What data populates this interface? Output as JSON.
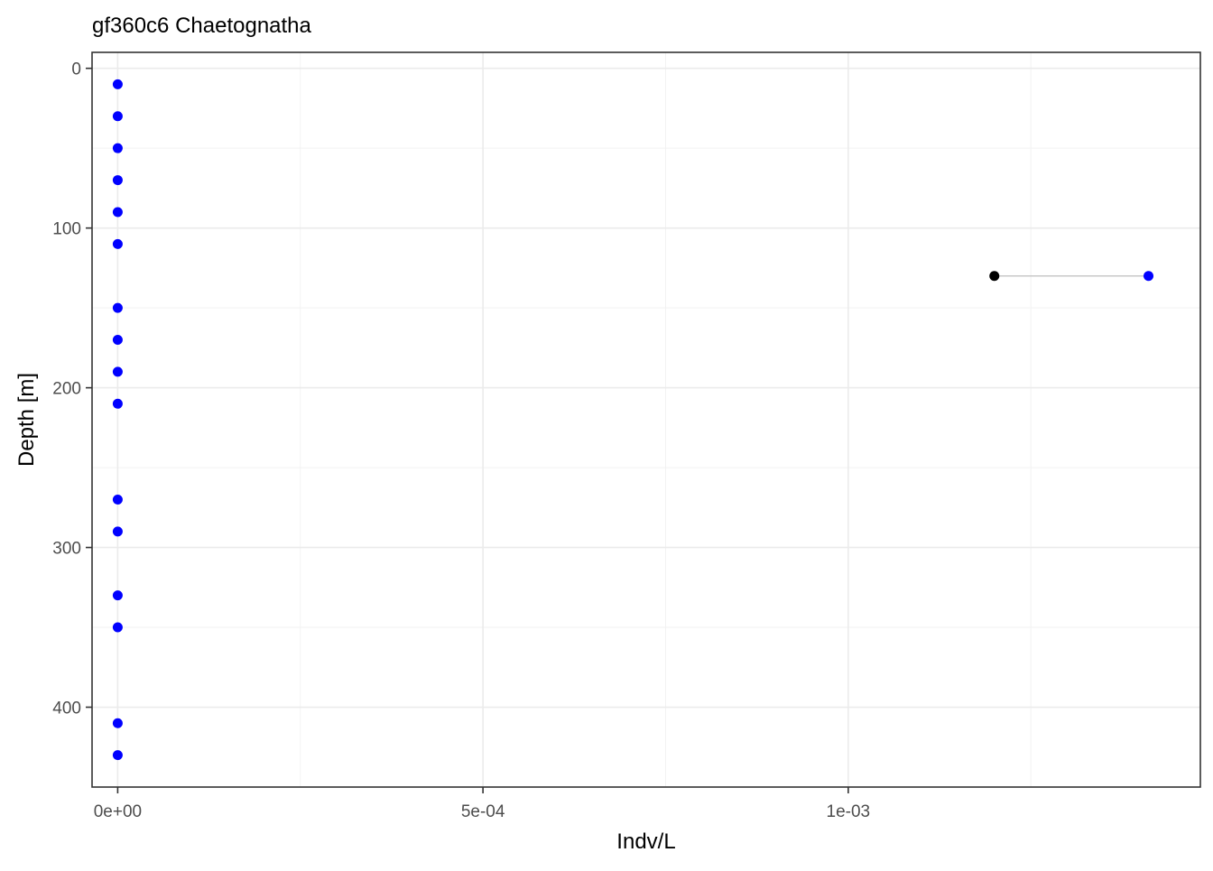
{
  "chart_data": {
    "type": "scatter",
    "title": "gf360c6 Chaetognatha",
    "xlabel": "Indv/L",
    "ylabel": "Depth [m]",
    "xlim": [
      -3.51e-05,
      0.001482
    ],
    "ylim": [
      450,
      -10
    ],
    "x_ticks": [
      0,
      0.0005,
      0.001
    ],
    "x_tick_labels": [
      "0e+00",
      "5e-04",
      "1e-03"
    ],
    "x_minor_ticks": [
      0.00025,
      0.00075,
      0.00125
    ],
    "y_ticks": [
      0,
      100,
      200,
      300,
      400
    ],
    "y_tick_labels": [
      "0",
      "100",
      "200",
      "300",
      "400"
    ],
    "y_minor_ticks": [
      50,
      150,
      250,
      350
    ],
    "grid": true,
    "series": [
      {
        "color": "#0000ff",
        "points": [
          {
            "x": 0,
            "y": 10
          },
          {
            "x": 0,
            "y": 30
          },
          {
            "x": 0,
            "y": 50
          },
          {
            "x": 0,
            "y": 70
          },
          {
            "x": 0,
            "y": 90
          },
          {
            "x": 0,
            "y": 110
          },
          {
            "x": 0.001411,
            "y": 130
          },
          {
            "x": 0,
            "y": 150
          },
          {
            "x": 0,
            "y": 170
          },
          {
            "x": 0,
            "y": 190
          },
          {
            "x": 0,
            "y": 210
          },
          {
            "x": 0,
            "y": 270
          },
          {
            "x": 0,
            "y": 290
          },
          {
            "x": 0,
            "y": 330
          },
          {
            "x": 0,
            "y": 350
          },
          {
            "x": 0,
            "y": 410
          },
          {
            "x": 0,
            "y": 430
          }
        ]
      },
      {
        "color": "#000000",
        "points": [
          {
            "x": 0.0012,
            "y": 130
          }
        ]
      }
    ],
    "segments": [
      {
        "x1": 0.0012,
        "x2": 0.001411,
        "y": 130,
        "color": "#c8c8c8"
      }
    ]
  }
}
